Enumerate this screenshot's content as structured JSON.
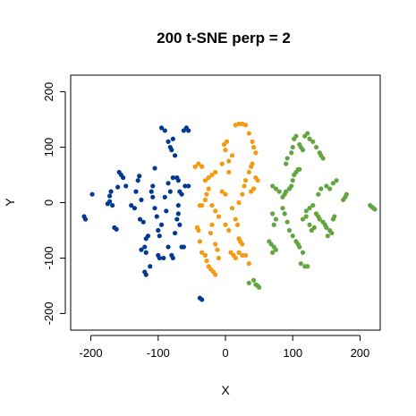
{
  "chart_data": {
    "type": "scatter",
    "title": "200 t-SNE perp = 2",
    "xlabel": "X",
    "ylabel": "Y",
    "xlim": [
      -230,
      230
    ],
    "ylim": [
      -230,
      230
    ],
    "xticks": [
      -200,
      -100,
      0,
      100,
      200
    ],
    "yticks": [
      -200,
      -100,
      0,
      100,
      200
    ],
    "xtick_labels": [
      "-200",
      "-100",
      "0",
      "100",
      "200"
    ],
    "ytick_labels": [
      "-200",
      "-100",
      "0",
      "100",
      "200"
    ],
    "grid": false,
    "legend": "none",
    "series": [
      {
        "color": "#003b91",
        "points": [
          [
            -210,
            -25
          ],
          [
            -208,
            -30
          ],
          [
            -198,
            15
          ],
          [
            -175,
            -2
          ],
          [
            -172,
            2
          ],
          [
            -168,
            -5
          ],
          [
            -172,
            12
          ],
          [
            -170,
            20
          ],
          [
            -165,
            -45
          ],
          [
            -162,
            -48
          ],
          [
            -160,
            28
          ],
          [
            -158,
            55
          ],
          [
            -155,
            50
          ],
          [
            -152,
            45
          ],
          [
            -148,
            30
          ],
          [
            -140,
            -5
          ],
          [
            -135,
            -10
          ],
          [
            -133,
            20
          ],
          [
            -130,
            40
          ],
          [
            -128,
            48
          ],
          [
            -125,
            5
          ],
          [
            -127,
            -30
          ],
          [
            -122,
            -35
          ],
          [
            -125,
            -85
          ],
          [
            -120,
            -80
          ],
          [
            -118,
            -65
          ],
          [
            -115,
            -60
          ],
          [
            -118,
            -90
          ],
          [
            -120,
            -125
          ],
          [
            -118,
            -130
          ],
          [
            -112,
            -115
          ],
          [
            -108,
            30
          ],
          [
            -105,
            62
          ],
          [
            -110,
            20
          ],
          [
            -108,
            10
          ],
          [
            -105,
            -10
          ],
          [
            -102,
            -25
          ],
          [
            -100,
            -50
          ],
          [
            -98,
            -60
          ],
          [
            -95,
            -40
          ],
          [
            -100,
            -95
          ],
          [
            -98,
            -100
          ],
          [
            -92,
            -100
          ],
          [
            -95,
            135
          ],
          [
            -90,
            130
          ],
          [
            -85,
            110
          ],
          [
            -82,
            100
          ],
          [
            -80,
            95
          ],
          [
            -78,
            115
          ],
          [
            -75,
            85
          ],
          [
            -85,
            -80
          ],
          [
            -80,
            -95
          ],
          [
            -78,
            -100
          ],
          [
            -90,
            10
          ],
          [
            -88,
            -15
          ],
          [
            -82,
            20
          ],
          [
            -85,
            35
          ],
          [
            -78,
            45
          ],
          [
            -72,
            45
          ],
          [
            -70,
            40
          ],
          [
            -70,
            -5
          ],
          [
            -72,
            -30
          ],
          [
            -68,
            -40
          ],
          [
            -65,
            -80
          ],
          [
            -62,
            -80
          ],
          [
            -68,
            20
          ],
          [
            -65,
            15
          ],
          [
            -60,
            30
          ],
          [
            -55,
            30
          ],
          [
            -62,
            130
          ],
          [
            -58,
            135
          ],
          [
            -55,
            130
          ],
          [
            -70,
            -20
          ],
          [
            -75,
            -55
          ],
          [
            -38,
            -172
          ],
          [
            -35,
            -175
          ]
        ]
      },
      {
        "color": "#f39a10",
        "points": [
          [
            -45,
            65
          ],
          [
            -40,
            70
          ],
          [
            -35,
            65
          ],
          [
            -38,
            -5
          ],
          [
            -35,
            -5
          ],
          [
            -30,
            5
          ],
          [
            -28,
            15
          ],
          [
            -25,
            25
          ],
          [
            -30,
            40
          ],
          [
            -25,
            45
          ],
          [
            -20,
            50
          ],
          [
            -15,
            55
          ],
          [
            -42,
            -45
          ],
          [
            -40,
            -50
          ],
          [
            -38,
            -70
          ],
          [
            -35,
            -90
          ],
          [
            -30,
            -95
          ],
          [
            -28,
            -105
          ],
          [
            -25,
            -115
          ],
          [
            -22,
            -120
          ],
          [
            -18,
            -125
          ],
          [
            -15,
            -130
          ],
          [
            -20,
            -40
          ],
          [
            -22,
            -55
          ],
          [
            -15,
            -75
          ],
          [
            -12,
            -85
          ],
          [
            -10,
            -100
          ],
          [
            -5,
            20
          ],
          [
            0,
            15
          ],
          [
            5,
            55
          ],
          [
            0,
            95
          ],
          [
            -2,
            105
          ],
          [
            2,
            110
          ],
          [
            5,
            75
          ],
          [
            10,
            85
          ],
          [
            -5,
            70
          ],
          [
            0,
            -40
          ],
          [
            5,
            -50
          ],
          [
            8,
            -90
          ],
          [
            12,
            -95
          ],
          [
            15,
            -100
          ],
          [
            20,
            -90
          ],
          [
            25,
            -95
          ],
          [
            30,
            -95
          ],
          [
            35,
            -110
          ],
          [
            15,
            140
          ],
          [
            20,
            142
          ],
          [
            25,
            142
          ],
          [
            30,
            140
          ],
          [
            35,
            125
          ],
          [
            40,
            110
          ],
          [
            42,
            100
          ],
          [
            45,
            90
          ],
          [
            40,
            70
          ],
          [
            38,
            65
          ],
          [
            35,
            55
          ],
          [
            38,
            20
          ],
          [
            42,
            25
          ],
          [
            45,
            45
          ],
          [
            48,
            40
          ],
          [
            20,
            -65
          ],
          [
            22,
            -70
          ],
          [
            25,
            -75
          ],
          [
            20,
            0
          ],
          [
            25,
            15
          ],
          [
            28,
            30
          ],
          [
            30,
            40
          ],
          [
            -20,
            -5
          ],
          [
            -15,
            -15
          ],
          [
            -10,
            -25
          ],
          [
            15,
            -30
          ],
          [
            18,
            -40
          ],
          [
            10,
            -10
          ]
        ]
      },
      {
        "color": "#62a541",
        "points": [
          [
            35,
            -145
          ],
          [
            42,
            -140
          ],
          [
            45,
            -148
          ],
          [
            48,
            -150
          ],
          [
            50,
            -153
          ],
          [
            65,
            -70
          ],
          [
            68,
            -75
          ],
          [
            72,
            -80
          ],
          [
            70,
            -90
          ],
          [
            75,
            -85
          ],
          [
            72,
            -40
          ],
          [
            75,
            -30
          ],
          [
            70,
            -20
          ],
          [
            70,
            30
          ],
          [
            75,
            25
          ],
          [
            80,
            20
          ],
          [
            85,
            10
          ],
          [
            88,
            15
          ],
          [
            90,
            20
          ],
          [
            95,
            25
          ],
          [
            98,
            30
          ],
          [
            100,
            40
          ],
          [
            102,
            50
          ],
          [
            105,
            55
          ],
          [
            108,
            60
          ],
          [
            110,
            60
          ],
          [
            85,
            -10
          ],
          [
            88,
            -20
          ],
          [
            92,
            -35
          ],
          [
            95,
            -50
          ],
          [
            100,
            -60
          ],
          [
            105,
            -70
          ],
          [
            108,
            -75
          ],
          [
            110,
            -80
          ],
          [
            115,
            -90
          ],
          [
            112,
            -110
          ],
          [
            118,
            -115
          ],
          [
            122,
            -115
          ],
          [
            90,
            70
          ],
          [
            92,
            80
          ],
          [
            98,
            90
          ],
          [
            100,
            100
          ],
          [
            102,
            115
          ],
          [
            105,
            120
          ],
          [
            110,
            105
          ],
          [
            112,
            100
          ],
          [
            115,
            95
          ],
          [
            118,
            120
          ],
          [
            122,
            125
          ],
          [
            125,
            115
          ],
          [
            130,
            110
          ],
          [
            135,
            100
          ],
          [
            140,
            90
          ],
          [
            142,
            85
          ],
          [
            145,
            80
          ],
          [
            115,
            -30
          ],
          [
            120,
            -25
          ],
          [
            125,
            -40
          ],
          [
            128,
            -50
          ],
          [
            132,
            -45
          ],
          [
            120,
            -15
          ],
          [
            125,
            -10
          ],
          [
            130,
            -5
          ],
          [
            135,
            -20
          ],
          [
            138,
            -25
          ],
          [
            140,
            -30
          ],
          [
            145,
            -35
          ],
          [
            148,
            -40
          ],
          [
            150,
            -45
          ],
          [
            155,
            -50
          ],
          [
            158,
            -55
          ],
          [
            152,
            -60
          ],
          [
            160,
            -30
          ],
          [
            162,
            -25
          ],
          [
            150,
            30
          ],
          [
            155,
            25
          ],
          [
            160,
            35
          ],
          [
            165,
            40
          ],
          [
            175,
            5
          ],
          [
            178,
            10
          ],
          [
            180,
            15
          ],
          [
            215,
            -5
          ],
          [
            218,
            -8
          ],
          [
            220,
            -10
          ],
          [
            222,
            -12
          ],
          [
            138,
            15
          ],
          [
            142,
            25
          ]
        ]
      }
    ]
  }
}
